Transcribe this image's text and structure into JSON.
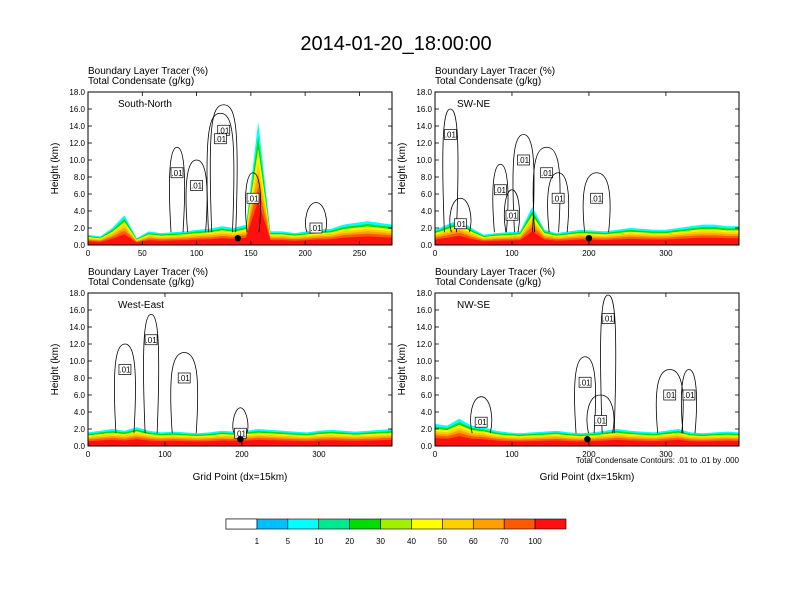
{
  "figure": {
    "title": "2014-01-20_18:00:00",
    "contour_note": "Total Condensate Contours: .01 to .01 by .000",
    "contour_label": ".01"
  },
  "chart_data": [
    {
      "type": "heatmap",
      "subtitle_lines": [
        "Boundary Layer Tracer   (%)",
        "Total Condensate   (g/kg)"
      ],
      "panel_label": "South-North",
      "ylabel": "Height (km)",
      "xlabel": "",
      "xlim": [
        0,
        280
      ],
      "ylim": [
        0,
        18
      ],
      "xticks": [
        "0",
        "50",
        "100",
        "150",
        "200",
        "250"
      ],
      "yticks": [
        "0.0",
        "2.0",
        "4.0",
        "6.0",
        "8.0",
        "10.0",
        "12.0",
        "14.0",
        "16.0",
        "18.0"
      ],
      "tracer_top_km": [
        1.2,
        1.0,
        2.0,
        3.5,
        0.8,
        1.6,
        1.4,
        1.5,
        1.6,
        1.8,
        1.9,
        2.2,
        2.0,
        2.4,
        14.5,
        1.6,
        1.6,
        1.4,
        1.6,
        1.8,
        1.9,
        2.4,
        2.6,
        2.8,
        2.6,
        2.4
      ],
      "marker": {
        "x": 138,
        "y_km": 0.8
      },
      "contour_labels_at": [
        [
          82,
          8.5
        ],
        [
          100,
          7.0
        ],
        [
          125,
          13.5
        ],
        [
          152,
          5.5
        ],
        [
          210,
          2.0
        ],
        [
          122,
          12.5
        ]
      ]
    },
    {
      "type": "heatmap",
      "subtitle_lines": [
        "Boundary Layer Tracer   (%)",
        "Total Condensate   (g/kg)"
      ],
      "panel_label": "SW-NE",
      "ylabel": "Height (km)",
      "xlabel": "",
      "xlim": [
        0,
        395
      ],
      "ylim": [
        0,
        18
      ],
      "xticks": [
        "0",
        "100",
        "200",
        "300"
      ],
      "yticks": [
        "0.0",
        "2.0",
        "4.0",
        "6.0",
        "8.0",
        "10.0",
        "12.0",
        "14.0",
        "16.0",
        "18.0"
      ],
      "tracer_top_km": [
        1.8,
        2.4,
        3.0,
        2.0,
        1.2,
        1.4,
        1.5,
        1.6,
        4.5,
        1.8,
        1.4,
        1.6,
        1.8,
        1.7,
        1.6,
        1.8,
        2.0,
        1.9,
        1.8,
        1.8,
        2.0,
        2.2,
        2.4,
        2.4,
        2.2,
        2.2
      ],
      "marker": {
        "x": 200,
        "y_km": 0.8
      },
      "contour_labels_at": [
        [
          20,
          13.0
        ],
        [
          115,
          10.0
        ],
        [
          145,
          8.5
        ],
        [
          85,
          6.5
        ],
        [
          160,
          5.5
        ],
        [
          210,
          5.5
        ],
        [
          100,
          3.5
        ],
        [
          33,
          2.5
        ]
      ]
    },
    {
      "type": "heatmap",
      "subtitle_lines": [
        "Boundary Layer Tracer   (%)",
        "Total Condensate   (g/kg)"
      ],
      "panel_label": "West-East",
      "ylabel": "Height (km)",
      "xlabel": "Grid Point (dx=15km)",
      "xlim": [
        0,
        395
      ],
      "ylim": [
        0,
        18
      ],
      "xticks": [
        "0",
        "100",
        "200",
        "300"
      ],
      "yticks": [
        "0.0",
        "2.0",
        "4.0",
        "6.0",
        "8.0",
        "10.0",
        "12.0",
        "14.0",
        "16.0",
        "18.0"
      ],
      "tracer_top_km": [
        1.6,
        1.8,
        2.0,
        1.8,
        2.2,
        1.8,
        1.6,
        1.7,
        1.6,
        1.5,
        1.6,
        1.8,
        1.7,
        1.8,
        2.0,
        1.9,
        1.8,
        1.7,
        1.6,
        1.8,
        1.9,
        1.8,
        1.7,
        1.8,
        1.9,
        2.0
      ],
      "marker": {
        "x": 198,
        "y_km": 0.8
      },
      "contour_labels_at": [
        [
          82,
          12.5
        ],
        [
          48,
          9.0
        ],
        [
          125,
          8.0
        ],
        [
          198,
          1.5
        ]
      ]
    },
    {
      "type": "heatmap",
      "subtitle_lines": [
        "Boundary Layer Tracer   (%)",
        "Total Condensate   (g/kg)"
      ],
      "panel_label": "NW-SE",
      "ylabel": "Height (km)",
      "xlabel": "Grid Point (dx=15km)",
      "xlim": [
        0,
        395
      ],
      "ylim": [
        0,
        18
      ],
      "xticks": [
        "0",
        "100",
        "200",
        "300"
      ],
      "yticks": [
        "0.0",
        "2.0",
        "4.0",
        "6.0",
        "8.0",
        "10.0",
        "12.0",
        "14.0",
        "16.0",
        "18.0"
      ],
      "tracer_top_km": [
        2.6,
        2.4,
        3.2,
        2.4,
        2.2,
        1.8,
        1.6,
        1.5,
        1.6,
        1.7,
        1.8,
        1.6,
        1.5,
        1.6,
        1.8,
        2.0,
        1.8,
        1.7,
        1.6,
        1.8,
        2.0,
        1.6,
        1.5,
        1.6,
        1.7,
        1.6
      ],
      "marker": {
        "x": 198,
        "y_km": 0.8
      },
      "contour_labels_at": [
        [
          225,
          15.0
        ],
        [
          195,
          7.5
        ],
        [
          305,
          6.0
        ],
        [
          330,
          6.0
        ],
        [
          60,
          2.8
        ],
        [
          215,
          3.0
        ]
      ]
    }
  ],
  "colorbar": {
    "labels": [
      "1",
      "5",
      "10",
      "20",
      "30",
      "40",
      "50",
      "60",
      "70",
      "100"
    ],
    "colors": [
      "#ffffff",
      "#1e90ff",
      "#00bfff",
      "#00ffff",
      "#00e890",
      "#00dd00",
      "#a0f000",
      "#ffff00",
      "#ffd000",
      "#ffa000",
      "#ff5a00",
      "#ff1010"
    ]
  }
}
